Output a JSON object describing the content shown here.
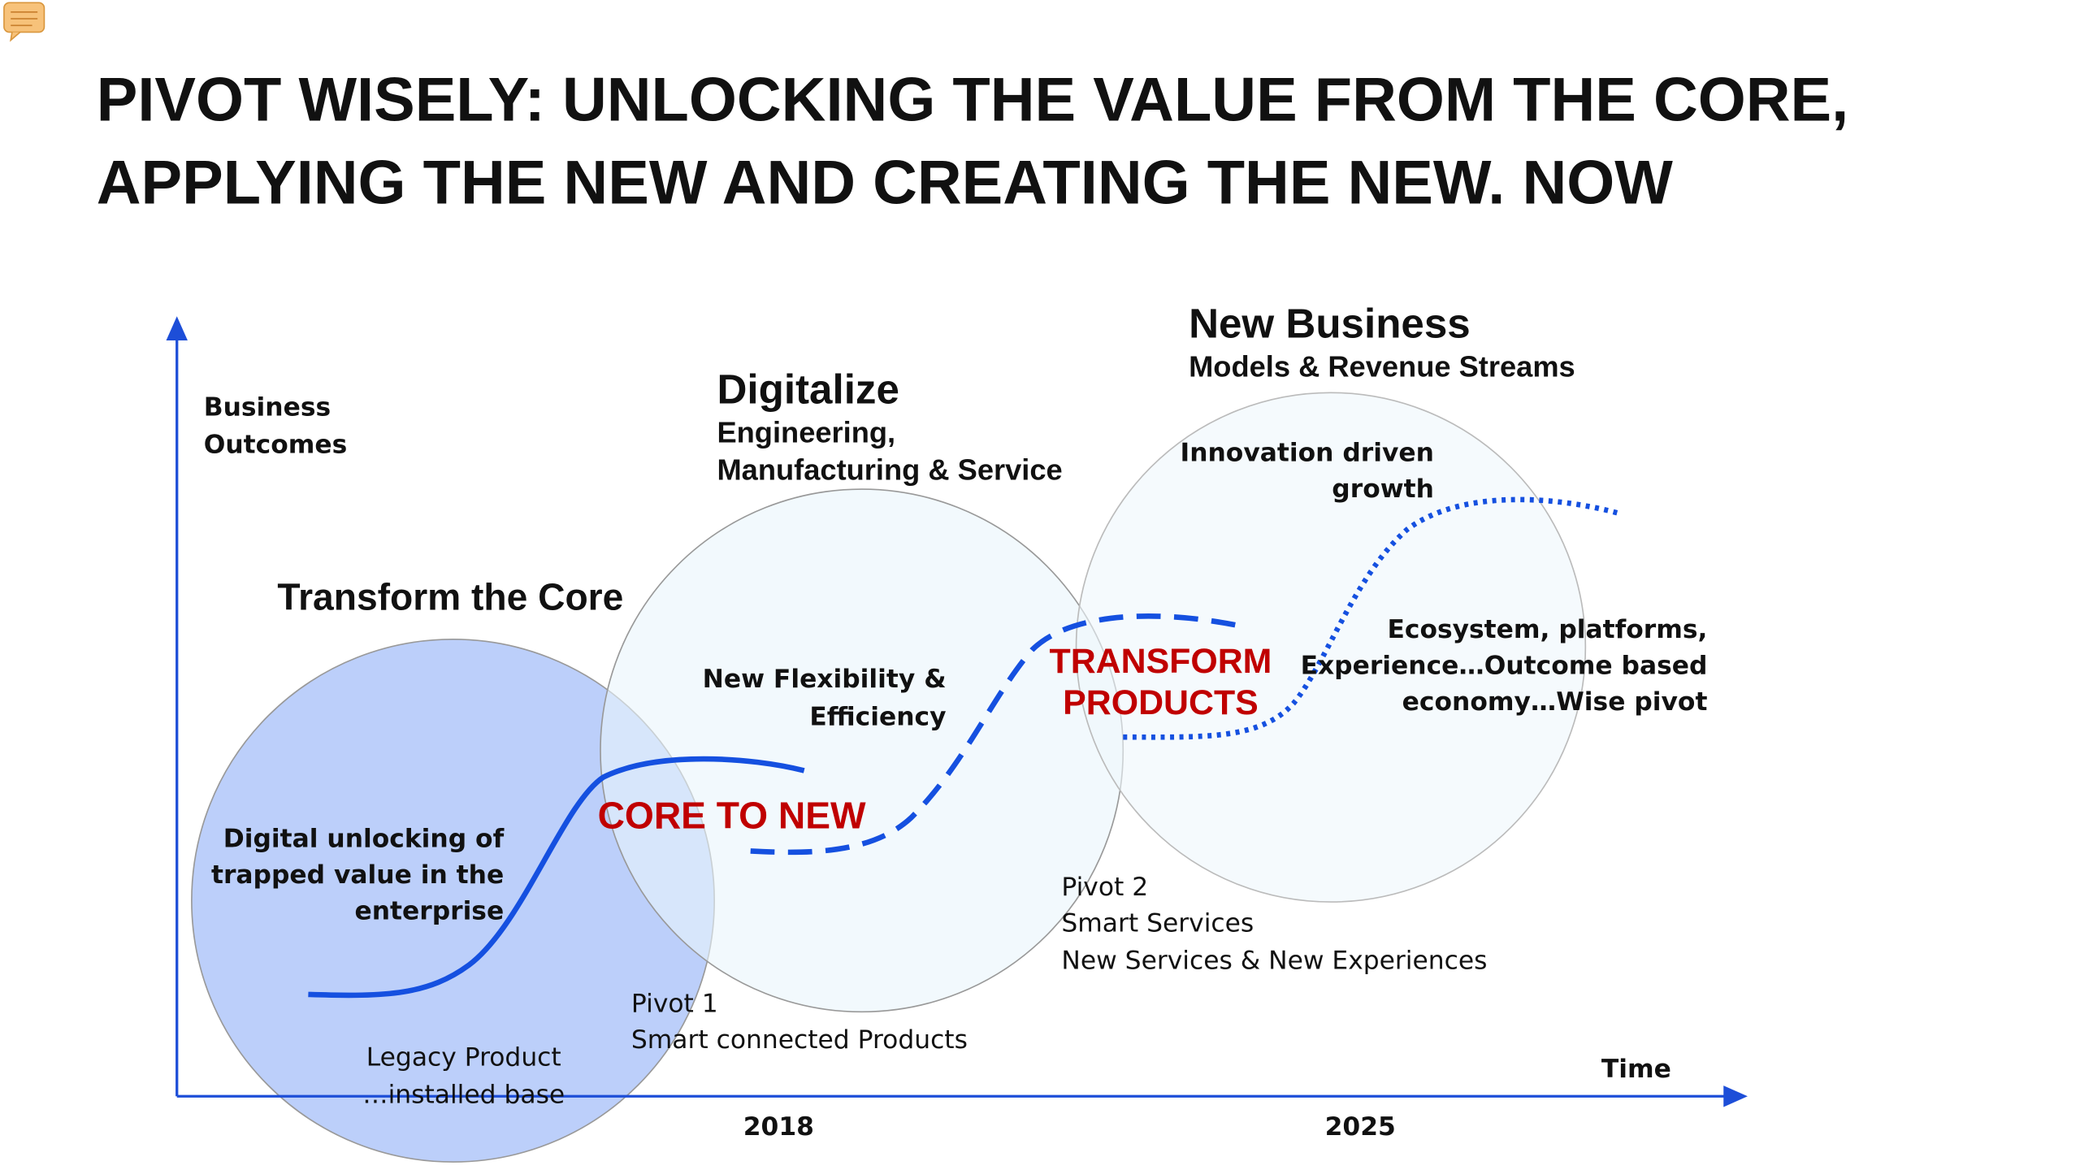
{
  "title": [
    "PIVOT WISELY:  UNLOCKING THE VALUE FROM THE CORE,",
    "APPLYING THE NEW AND CREATING THE NEW. NOW"
  ],
  "axes": {
    "y_label": [
      "Business",
      "Outcomes"
    ],
    "x_label": "Time",
    "x_marks": [
      "2018",
      "2025"
    ]
  },
  "stages": [
    {
      "title": "Transform the Core",
      "description": [
        "Digital unlocking of",
        "trapped value in the",
        "enterprise"
      ]
    },
    {
      "title": "Digitalize",
      "subtitle": [
        "Engineering,",
        "Manufacturing & Service"
      ],
      "description": [
        "New Flexibility &",
        "Efficiency"
      ]
    },
    {
      "title": "New Business",
      "subtitle": [
        "Models & Revenue Streams"
      ],
      "description": [
        "Innovation driven",
        "growth"
      ],
      "details": [
        "Ecosystem, platforms,",
        "Experience…Outcome based",
        "economy…Wise pivot"
      ]
    }
  ],
  "transitions": [
    {
      "label": [
        "CORE TO NEW"
      ]
    },
    {
      "label": [
        "TRANSFORM",
        "PRODUCTS"
      ]
    }
  ],
  "legacy": [
    "Legacy Product",
    "…installed base"
  ],
  "pivots": [
    {
      "name": "Pivot 1",
      "lines": [
        "Smart connected Products"
      ]
    },
    {
      "name": "Pivot 2",
      "lines": [
        "Smart Services",
        "New Services & New Experiences"
      ]
    }
  ]
}
